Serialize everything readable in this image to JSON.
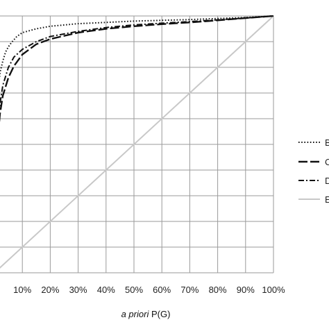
{
  "chart_data": {
    "type": "line",
    "title": "",
    "xlabel": {
      "prefix": "a priori",
      "suffix": " P(G)"
    },
    "ylabel": "",
    "xlim": [
      0,
      100
    ],
    "ylim": [
      0,
      100
    ],
    "grid": true,
    "legend_position": "right",
    "x_tick_labels": [
      "10%",
      "20%",
      "30%",
      "40%",
      "50%",
      "60%",
      "70%",
      "80%",
      "90%",
      "100%"
    ],
    "series": [
      {
        "name": "B",
        "style": "dotted",
        "color": "#111111",
        "x": [
          0,
          0.5,
          1,
          2,
          3,
          4,
          5,
          6,
          8,
          10,
          15,
          20,
          30,
          40,
          50,
          60,
          70,
          80,
          90,
          100
        ],
        "y": [
          40,
          56,
          67,
          78,
          82.5,
          86,
          88,
          89.5,
          92,
          93.5,
          95,
          96,
          97,
          97.5,
          98,
          98.3,
          98.6,
          99,
          99.4,
          100
        ]
      },
      {
        "name": "C",
        "style": "longdash",
        "color": "#111111",
        "x": [
          0,
          0.5,
          1,
          2,
          3,
          5,
          7,
          10,
          15,
          20,
          30,
          40,
          50,
          60,
          70,
          80,
          90,
          100
        ],
        "y": [
          36,
          42,
          50,
          62,
          69,
          76,
          80.5,
          85,
          89,
          91,
          93.5,
          95,
          96,
          96.8,
          97.5,
          98.3,
          99.2,
          100
        ]
      },
      {
        "name": "D",
        "style": "dashdot",
        "color": "#111111",
        "x": [
          0,
          0.5,
          1,
          2,
          3,
          5,
          7,
          10,
          15,
          20,
          30,
          40,
          50,
          60,
          70,
          80,
          90,
          100
        ],
        "y": [
          36,
          45,
          55,
          66,
          73,
          80,
          84,
          87,
          90,
          92,
          94,
          95.5,
          96.5,
          97.2,
          97.8,
          98.5,
          99.2,
          100
        ]
      },
      {
        "name": "E",
        "style": "solid",
        "color": "#c8c8c8",
        "x": [
          0,
          100
        ],
        "y": [
          0,
          100
        ]
      }
    ]
  }
}
